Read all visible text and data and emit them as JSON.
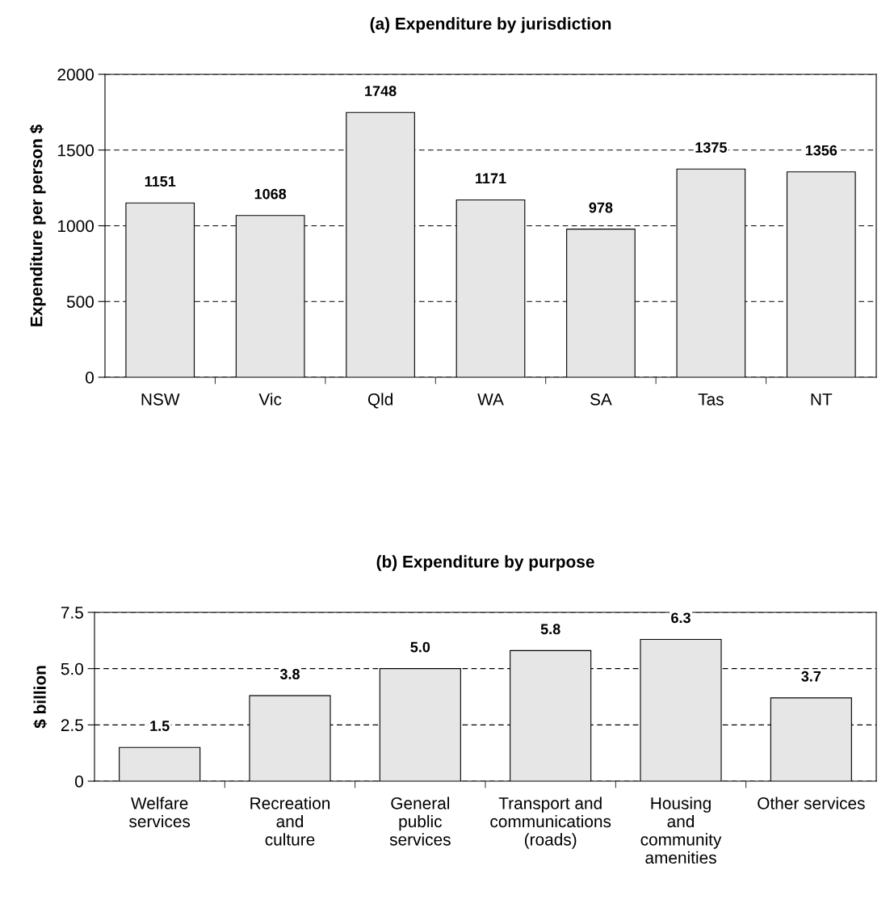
{
  "chart_data": [
    {
      "type": "bar",
      "title": "(a) Expenditure by jurisdiction",
      "ylabel": "Expenditure per person $",
      "categories": [
        "NSW",
        "Vic",
        "Qld",
        "WA",
        "SA",
        "Tas",
        "NT"
      ],
      "values": [
        1151,
        1068,
        1748,
        1171,
        978,
        1375,
        1356
      ],
      "color": "#e6e6e6",
      "ylim": [
        0,
        2000
      ],
      "yticks": [
        0,
        500,
        1000,
        1500,
        2000
      ],
      "grid": "y",
      "data_labels": true,
      "legend": false
    },
    {
      "type": "bar",
      "title": "(b) Expenditure by purpose",
      "ylabel": "$ billion",
      "categories": [
        "Welfare\nservices",
        "Recreation\nand\nculture",
        "General\npublic\nservices",
        "Transport and\ncommunications\n(roads)",
        "Housing\nand\ncommunity\namenities",
        "Other services"
      ],
      "values": [
        1.5,
        3.8,
        5.0,
        5.8,
        6.3,
        3.7
      ],
      "color": "#e6e6e6",
      "value_labels": [
        "1.5",
        "3.8",
        "5.0",
        "5.8",
        "6.3",
        "3.7"
      ],
      "ylim": [
        0,
        7.5
      ],
      "yticks": [
        0,
        {
          "value": 2.5,
          "label": "2.5"
        },
        {
          "value": 5,
          "label": "5.0"
        },
        {
          "value": 7.5,
          "label": "7.5"
        }
      ],
      "grid": "y",
      "legend": false
    }
  ]
}
